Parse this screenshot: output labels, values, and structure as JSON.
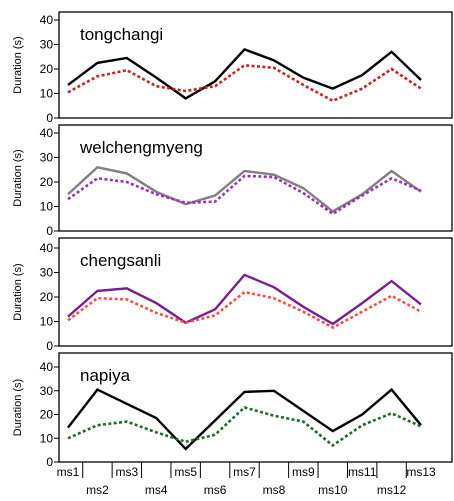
{
  "chart_data": {
    "type": "line",
    "ylabel": "Duration (s)",
    "categories": [
      "ms1",
      "ms2",
      "ms3",
      "ms4",
      "ms5",
      "ms6",
      "ms7",
      "ms8",
      "ms9",
      "ms10",
      "ms11",
      "ms12",
      "ms13"
    ],
    "ylim": [
      0,
      40
    ],
    "yticks": [
      0,
      10,
      20,
      30,
      40
    ],
    "panels": [
      {
        "title": "tongchangi",
        "series": [
          {
            "color": "#000000",
            "style": "solid",
            "values": [
              13.5,
              22.5,
              24.5,
              16.5,
              8,
              15,
              28,
              23.5,
              16.5,
              12,
              17.5,
              27,
              15.5
            ]
          },
          {
            "color": "#cc2222",
            "style": "dotted",
            "values": [
              10.5,
              17,
              19.5,
              13,
              11,
              13,
              21.5,
              20.5,
              13.5,
              7,
              12,
              20,
              12
            ]
          }
        ]
      },
      {
        "title": "welchengmyeng",
        "series": [
          {
            "color": "#7f7f7f",
            "style": "solid",
            "values": [
              15,
              26,
              23.5,
              16,
              11,
              14.5,
              24.5,
              23,
              17.5,
              8,
              15,
              24.5,
              16
            ]
          },
          {
            "color": "#9a33b8",
            "style": "dotted",
            "values": [
              13,
              21.5,
              20,
              15,
              11.5,
              12,
              22.5,
              22,
              15.5,
              7,
              14.5,
              21.5,
              16.5
            ]
          }
        ]
      },
      {
        "title": "chengsanli",
        "series": [
          {
            "color": "#7b1f8f",
            "style": "solid",
            "values": [
              12,
              22.5,
              23.5,
              17.5,
              9.5,
              15,
              29,
              24,
              16,
              9,
              17.5,
              26.5,
              17
            ]
          },
          {
            "color": "#ff4d4d",
            "style": "dotted",
            "values": [
              10.5,
              19.5,
              19,
              13.5,
              9.5,
              12.5,
              22,
              19.5,
              14,
              7.5,
              14,
              20.5,
              14
            ]
          }
        ]
      },
      {
        "title": "napiya",
        "series": [
          {
            "color": "#000000",
            "style": "solid",
            "values": [
              14.5,
              30.5,
              24.5,
              18.5,
              5.5,
              17.5,
              29.5,
              30,
              21.5,
              13,
              20,
              30.5,
              15.5
            ]
          },
          {
            "color": "#1f6b2f",
            "style": "dotted",
            "values": [
              10,
              15.5,
              17,
              12.5,
              8.5,
              11.5,
              23,
              19.5,
              17,
              7,
              15.5,
              20.5,
              15
            ]
          }
        ]
      }
    ],
    "grid": false,
    "legend": "none"
  }
}
